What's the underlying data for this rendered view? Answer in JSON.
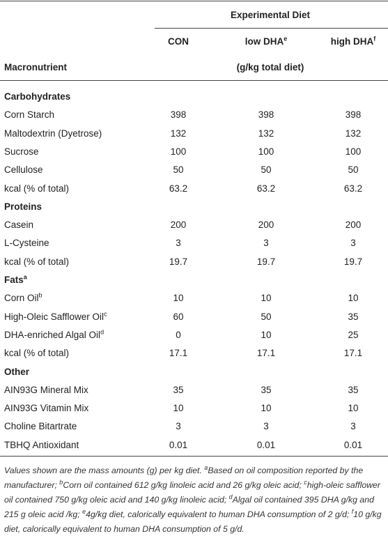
{
  "header": {
    "group_title": "Experimental Diet",
    "columns": [
      {
        "text": "CON"
      },
      {
        "text": "low DHA",
        "sup": "e"
      },
      {
        "text": "high DHA",
        "sup": "f"
      }
    ],
    "row_header": "Macronutrient",
    "unit": "(g/kg total diet)"
  },
  "sections": [
    {
      "title": "Carbohydrates",
      "rows": [
        {
          "label": "Corn Starch",
          "values": [
            398,
            398,
            398
          ]
        },
        {
          "label": "Maltodextrin (Dyetrose)",
          "values": [
            132,
            132,
            132
          ]
        },
        {
          "label": "Sucrose",
          "values": [
            100,
            100,
            100
          ]
        },
        {
          "label": "Cellulose",
          "values": [
            50,
            50,
            50
          ]
        },
        {
          "label": "kcal (% of total)",
          "values": [
            63.2,
            63.2,
            63.2
          ]
        }
      ]
    },
    {
      "title": "Proteins",
      "rows": [
        {
          "label": "Casein",
          "values": [
            200,
            200,
            200
          ]
        },
        {
          "label": "L-Cysteine",
          "values": [
            3,
            3,
            3
          ]
        },
        {
          "label": "kcal (% of total)",
          "values": [
            19.7,
            19.7,
            19.7
          ]
        }
      ]
    },
    {
      "title": "Fats",
      "sup": "a",
      "rows": [
        {
          "label": "Corn Oil",
          "sup": "b",
          "values": [
            10,
            10,
            10
          ]
        },
        {
          "label": "High-Oleic Safflower Oil",
          "sup": "c",
          "values": [
            60,
            50,
            35
          ]
        },
        {
          "label": "DHA-enriched Algal Oil",
          "sup": "d",
          "values": [
            0,
            10,
            25
          ]
        },
        {
          "label": "kcal (% of total)",
          "values": [
            17.1,
            17.1,
            17.1
          ]
        }
      ]
    },
    {
      "title": "Other",
      "rows": [
        {
          "label": "AIN93G Mineral Mix",
          "values": [
            35,
            35,
            35
          ]
        },
        {
          "label": "AIN93G Vitamin Mix",
          "values": [
            10,
            10,
            10
          ]
        },
        {
          "label": "Choline Bitartrate",
          "values": [
            3,
            3,
            3
          ]
        },
        {
          "label": "TBHQ Antioxidant",
          "values": [
            0.01,
            0.01,
            0.01
          ]
        }
      ]
    }
  ],
  "footnote": [
    {
      "text": "Values shown are the mass amounts (g) per kg diet. "
    },
    {
      "sup": "a"
    },
    {
      "text": "Based on oil composition reported by the manufacturer; "
    },
    {
      "sup": "b"
    },
    {
      "text": "Corn oil contained 612 g/kg linoleic acid and 26 g/kg oleic acid; "
    },
    {
      "sup": "c"
    },
    {
      "text": "high-oleic safflower oil contained 750 g/kg oleic acid and 140 g/kg linoleic acid; "
    },
    {
      "sup": "d"
    },
    {
      "text": "Algal oil contained 395 DHA g/kg and 215 g oleic acid /kg; "
    },
    {
      "sup": "e"
    },
    {
      "text": "4g/kg diet, calorically equivalent to human DHA consumption of 2 g/d; "
    },
    {
      "sup": "f"
    },
    {
      "text": "10 g/kg diet, calorically equivalent to human DHA consumption of 5 g/d."
    }
  ]
}
